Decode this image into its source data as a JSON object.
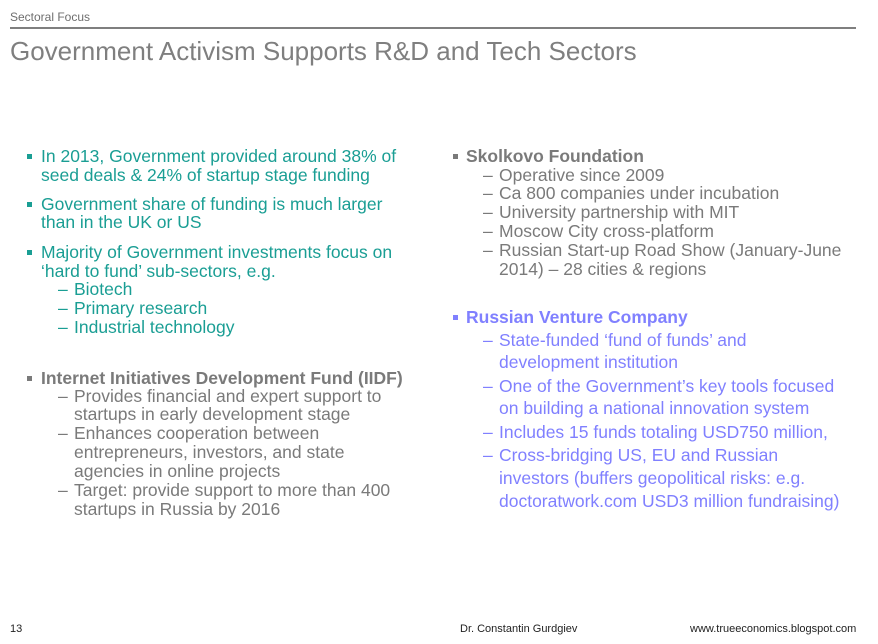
{
  "header": {
    "section": "Sectoral Focus",
    "title": "Government Activism Supports R&D and Tech Sectors"
  },
  "colors": {
    "teal": "#1a9e94",
    "gray": "#7a7a7a",
    "purple": "#8080ff"
  },
  "left": {
    "bullets": [
      {
        "lines": [
          "In 2013, Government provided around 38% of",
          "seed deals & 24% of startup stage funding"
        ]
      },
      {
        "lines": [
          "Government share of funding is much larger",
          "than in the UK or US"
        ]
      },
      {
        "lines": [
          "Majority of Government investments focus on",
          "‘hard to fund’ sub-sectors, e.g."
        ],
        "subs": [
          [
            "Biotech"
          ],
          [
            "Primary research"
          ],
          [
            "Industrial technology"
          ]
        ]
      },
      {
        "lines": [
          "Internet Initiatives Development Fund (IIDF)"
        ],
        "subs": [
          [
            "Provides financial and expert support to",
            "startups in early development stage"
          ],
          [
            "Enhances cooperation between",
            "entrepreneurs, investors, and state",
            "agencies in online projects"
          ],
          [
            "Target: provide support to more than 400",
            "startups in Russia by 2016"
          ]
        ]
      }
    ]
  },
  "right": {
    "bullets": [
      {
        "lines": [
          "Skolkovo Foundation"
        ],
        "subs": [
          [
            "Operative since 2009"
          ],
          [
            "Ca 800 companies under incubation"
          ],
          [
            "University partnership with MIT"
          ],
          [
            "Moscow City cross-platform"
          ],
          [
            "Russian Start-up Road Show (January-June",
            "2014) – 28 cities & regions"
          ]
        ]
      },
      {
        "lines": [
          "Russian Venture Company"
        ],
        "subs": [
          [
            "State-funded ‘fund of funds’ and",
            "development institution"
          ],
          [
            "One of the Government’s key tools focused",
            "on building a national innovation system"
          ],
          [
            "Includes 15 funds totaling USD750 million,"
          ],
          [
            "Cross-bridging US, EU and Russian",
            "investors (buffers geopolitical risks: e.g.",
            "doctoratwork.com USD3 million fundraising)"
          ]
        ]
      }
    ]
  },
  "footer": {
    "page": "13",
    "author": "Dr. Constantin Gurdgiev",
    "url": "www.trueeconomics.blogspot.com"
  },
  "dash": "–"
}
